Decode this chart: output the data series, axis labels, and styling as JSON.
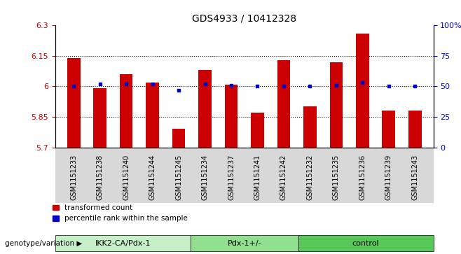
{
  "title": "GDS4933 / 10412328",
  "samples": [
    "GSM1151233",
    "GSM1151238",
    "GSM1151240",
    "GSM1151244",
    "GSM1151245",
    "GSM1151234",
    "GSM1151237",
    "GSM1151241",
    "GSM1151242",
    "GSM1151232",
    "GSM1151235",
    "GSM1151236",
    "GSM1151239",
    "GSM1151243"
  ],
  "red_values": [
    6.14,
    5.99,
    6.06,
    6.02,
    5.79,
    6.08,
    6.01,
    5.87,
    6.13,
    5.9,
    6.12,
    6.26,
    5.88,
    5.88
  ],
  "blue_values": [
    50,
    52,
    52,
    52,
    47,
    52,
    51,
    50,
    50,
    50,
    51,
    53,
    50,
    50
  ],
  "groups": [
    {
      "label": "IKK2-CA/Pdx-1",
      "start": 0,
      "end": 5,
      "color": "#c8f0c8"
    },
    {
      "label": "Pdx-1+/-",
      "start": 5,
      "end": 9,
      "color": "#90e090"
    },
    {
      "label": "control",
      "start": 9,
      "end": 14,
      "color": "#58c858"
    }
  ],
  "ylim_left": [
    5.7,
    6.3
  ],
  "ylim_right": [
    0,
    100
  ],
  "yticks_left": [
    5.7,
    5.85,
    6.0,
    6.15,
    6.3
  ],
  "yticks_right": [
    0,
    25,
    50,
    75,
    100
  ],
  "ytick_labels_left": [
    "5.7",
    "5.85",
    "6",
    "6.15",
    "6.3"
  ],
  "ytick_labels_right": [
    "0",
    "25",
    "50",
    "75",
    "100%"
  ],
  "grid_values": [
    5.85,
    6.0,
    6.15
  ],
  "bar_color": "#cc0000",
  "dot_color": "#0000cc",
  "bar_width": 0.5,
  "bar_bottom": 5.7,
  "group_label_prefix": "genotype/variation",
  "legend_red": "transformed count",
  "legend_blue": "percentile rank within the sample",
  "bg_color": "#d8d8d8"
}
